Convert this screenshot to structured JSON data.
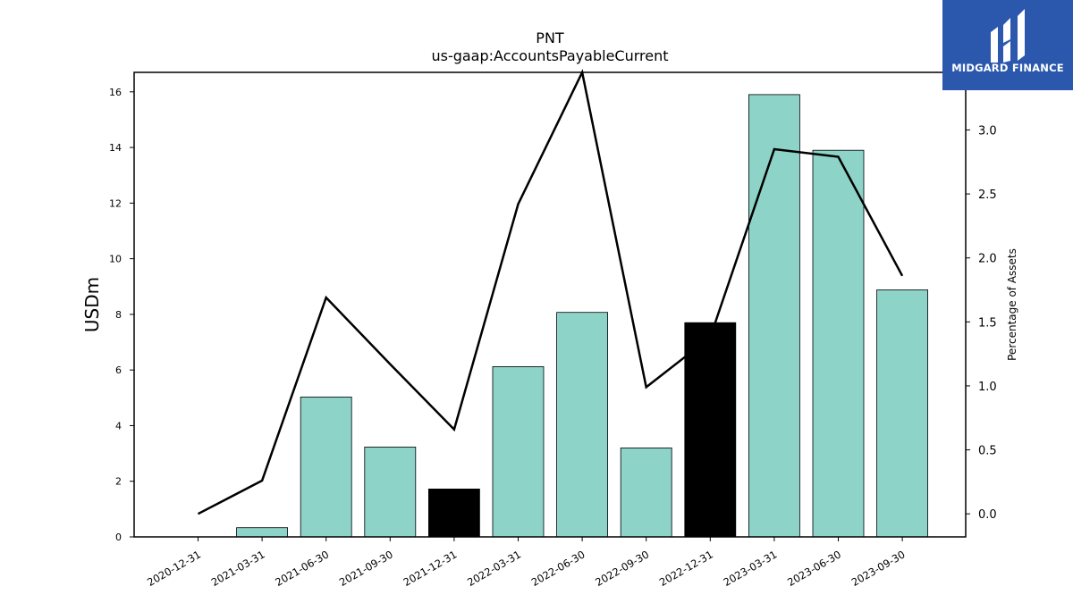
{
  "logo": {
    "text": "MIDGARD FINANCE",
    "icon": "midgard-logo-icon",
    "background": "#2b58ad"
  },
  "colors": {
    "bar": "#8dd3c7",
    "bar_highlight": "#000000",
    "line": "#000000"
  },
  "chart_data": {
    "type": "bar",
    "title": "PNT",
    "subtitle": "us-gaap:AccountsPayableCurrent",
    "ylabel": "USDm",
    "y2label": "Percentage of Assets",
    "categories": [
      "2020-12-31",
      "2021-03-31",
      "2021-06-30",
      "2021-09-30",
      "2021-12-31",
      "2022-03-31",
      "2022-06-30",
      "2022-09-30",
      "2022-12-31",
      "2023-03-31",
      "2023-06-30",
      "2023-09-30"
    ],
    "series": [
      {
        "type": "bar",
        "axis": "left",
        "values": [
          0,
          0.33,
          5.03,
          3.23,
          1.72,
          6.12,
          8.07,
          3.2,
          7.7,
          15.9,
          13.9,
          8.88
        ],
        "highlight": [
          false,
          false,
          false,
          false,
          true,
          false,
          false,
          false,
          true,
          false,
          false,
          false
        ]
      },
      {
        "type": "line",
        "axis": "right",
        "values": [
          0.0,
          0.26,
          1.69,
          1.17,
          0.66,
          2.42,
          3.45,
          0.99,
          1.38,
          2.85,
          2.79,
          1.86
        ]
      }
    ],
    "ylim": [
      0,
      16.7
    ],
    "y2lim": [
      -0.18,
      3.45
    ],
    "yticks": [
      0,
      2,
      4,
      6,
      8,
      10,
      12,
      14,
      16
    ],
    "y2ticks": [
      "0.0",
      "0.5",
      "1.0",
      "1.5",
      "2.0",
      "2.5",
      "3.0"
    ],
    "grid": false
  }
}
